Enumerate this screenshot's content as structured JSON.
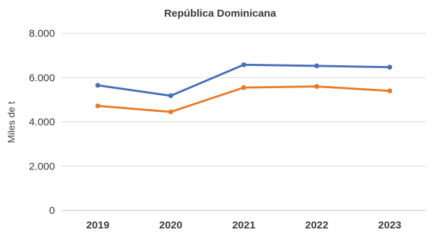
{
  "chart_data": {
    "type": "line",
    "title": "República Dominicana",
    "xlabel": "",
    "ylabel": "Miles de t",
    "categories": [
      "2019",
      "2020",
      "2021",
      "2022",
      "2023"
    ],
    "ylim": [
      0,
      8000
    ],
    "yticks": [
      0,
      2000,
      4000,
      6000,
      8000
    ],
    "ytick_labels": [
      "0",
      "2.000",
      "4.000",
      "6.000",
      "8.000"
    ],
    "grid": true,
    "series": [
      {
        "color": "#4a6fb5",
        "values": [
          5650,
          5180,
          6580,
          6530,
          6470
        ]
      },
      {
        "color": "#e87b2a",
        "values": [
          4720,
          4450,
          5550,
          5600,
          5400
        ]
      }
    ]
  }
}
